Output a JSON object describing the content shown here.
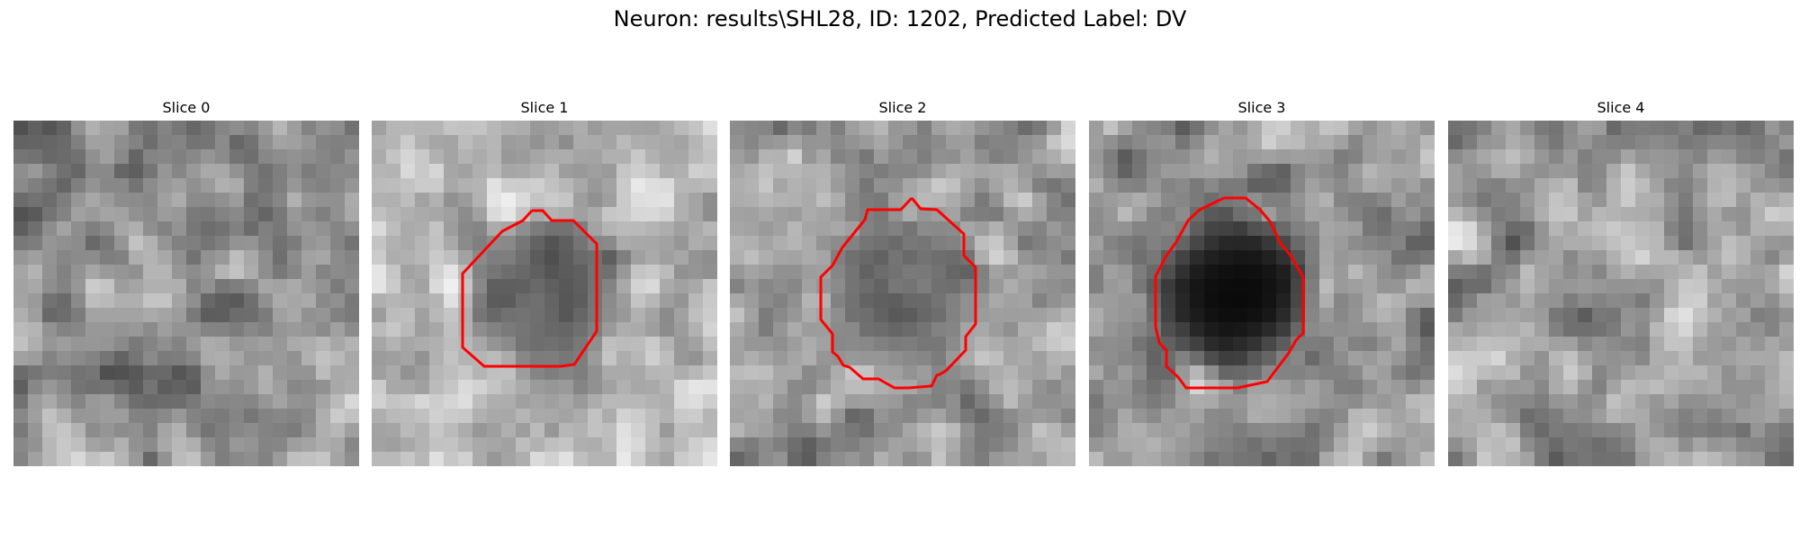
{
  "figure": {
    "title": "Neuron: results\\SHL28, ID: 1202, Predicted Label: DV",
    "contour_color": "#ff0000",
    "colormap": "gray",
    "grid_size": 24,
    "panels": [
      {
        "label": "Slice 0",
        "has_contour": false,
        "seed": 11,
        "base": 0.55,
        "blob": 0.0
      },
      {
        "label": "Slice 1",
        "has_contour": true,
        "seed": 23,
        "base": 0.72,
        "blob": 0.62
      },
      {
        "label": "Slice 2",
        "has_contour": true,
        "seed": 37,
        "base": 0.62,
        "blob": 0.5
      },
      {
        "label": "Slice 3",
        "has_contour": true,
        "seed": 41,
        "base": 0.58,
        "blob": 0.95
      },
      {
        "label": "Slice 4",
        "has_contour": false,
        "seed": 53,
        "base": 0.62,
        "blob": 0.0
      }
    ]
  }
}
